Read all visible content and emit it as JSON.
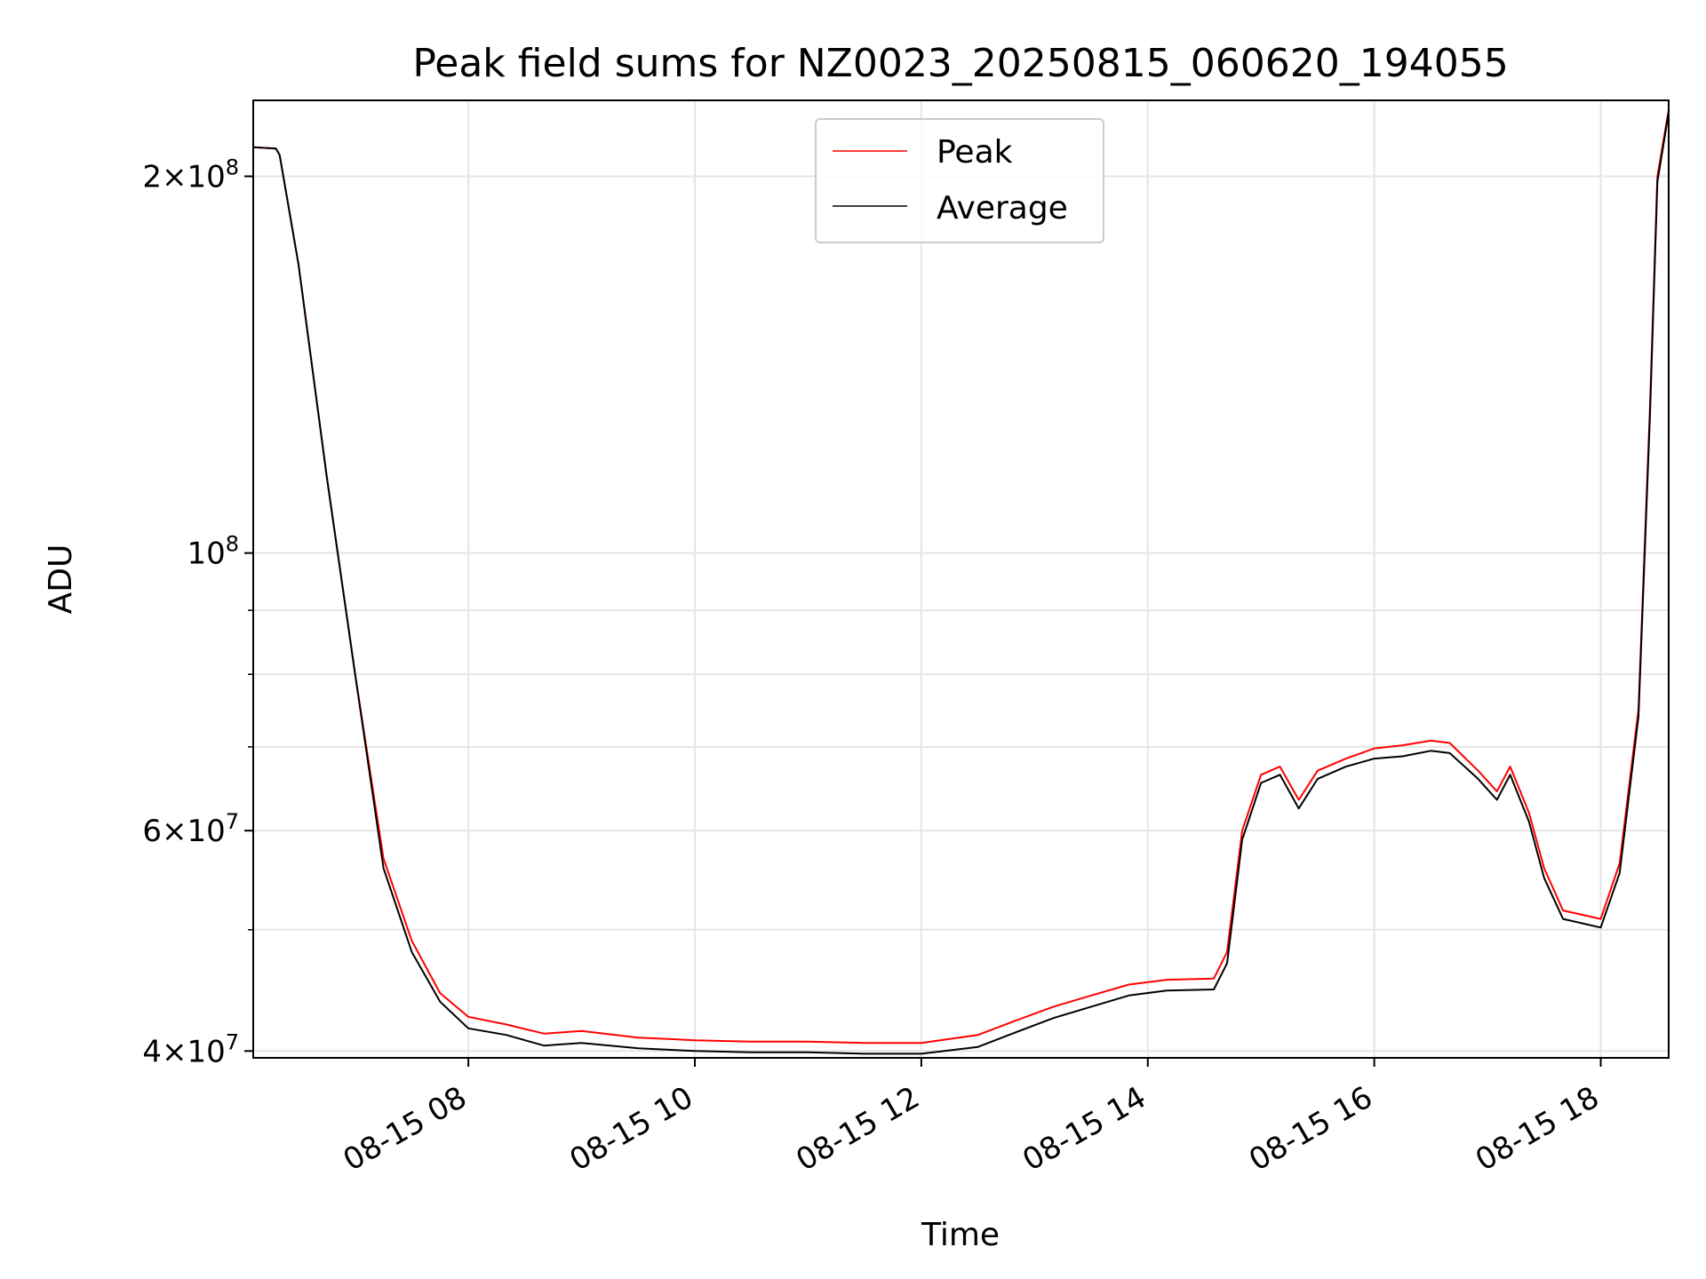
{
  "chart_data": {
    "type": "line",
    "title": "Peak field sums for NZ0023_20250815_060620_194055",
    "xlabel": "Time",
    "ylabel": "ADU",
    "yscale": "log",
    "xlim": [
      "2025-08-15 06:06",
      "2025-08-15 18:36"
    ],
    "ylim": [
      39500000,
      230000000
    ],
    "grid": true,
    "legend_position": "upper center",
    "x_ticks": [
      {
        "value": "2025-08-15 08:00",
        "label": "08-15 08"
      },
      {
        "value": "2025-08-15 10:00",
        "label": "08-15 10"
      },
      {
        "value": "2025-08-15 12:00",
        "label": "08-15 12"
      },
      {
        "value": "2025-08-15 14:00",
        "label": "08-15 14"
      },
      {
        "value": "2025-08-15 16:00",
        "label": "08-15 16"
      },
      {
        "value": "2025-08-15 18:00",
        "label": "08-15 18"
      }
    ],
    "y_ticks": [
      {
        "value": 40000000,
        "mantissa": "4",
        "exp": "7"
      },
      {
        "value": 60000000,
        "mantissa": "6",
        "exp": "7"
      },
      {
        "value": 100000000,
        "mantissa": "",
        "exp": "8"
      },
      {
        "value": 200000000,
        "mantissa": "2",
        "exp": "8"
      }
    ],
    "y_minor_ticks": [
      50000000,
      70000000,
      80000000,
      90000000
    ],
    "series": [
      {
        "name": "Peak",
        "color": "#ff0000",
        "points": [
          [
            "2025-08-15 06:06",
            211000000
          ],
          [
            "2025-08-15 06:18",
            210500000
          ],
          [
            "2025-08-15 06:20",
            208000000
          ],
          [
            "2025-08-15 06:30",
            170000000
          ],
          [
            "2025-08-15 06:45",
            115000000
          ],
          [
            "2025-08-15 07:00",
            80000000
          ],
          [
            "2025-08-15 07:15",
            57000000
          ],
          [
            "2025-08-15 07:30",
            49000000
          ],
          [
            "2025-08-15 07:45",
            44500000
          ],
          [
            "2025-08-15 08:00",
            42600000
          ],
          [
            "2025-08-15 08:20",
            42000000
          ],
          [
            "2025-08-15 08:40",
            41300000
          ],
          [
            "2025-08-15 09:00",
            41500000
          ],
          [
            "2025-08-15 09:30",
            41000000
          ],
          [
            "2025-08-15 10:00",
            40800000
          ],
          [
            "2025-08-15 10:30",
            40700000
          ],
          [
            "2025-08-15 11:00",
            40700000
          ],
          [
            "2025-08-15 11:30",
            40600000
          ],
          [
            "2025-08-15 12:00",
            40600000
          ],
          [
            "2025-08-15 12:30",
            41200000
          ],
          [
            "2025-08-15 12:50",
            42300000
          ],
          [
            "2025-08-15 13:10",
            43400000
          ],
          [
            "2025-08-15 13:30",
            44300000
          ],
          [
            "2025-08-15 13:50",
            45200000
          ],
          [
            "2025-08-15 14:10",
            45600000
          ],
          [
            "2025-08-15 14:35",
            45700000
          ],
          [
            "2025-08-15 14:42",
            48000000
          ],
          [
            "2025-08-15 14:50",
            60000000
          ],
          [
            "2025-08-15 15:00",
            66500000
          ],
          [
            "2025-08-15 15:10",
            67500000
          ],
          [
            "2025-08-15 15:20",
            63500000
          ],
          [
            "2025-08-15 15:30",
            67000000
          ],
          [
            "2025-08-15 15:45",
            68500000
          ],
          [
            "2025-08-15 16:00",
            69800000
          ],
          [
            "2025-08-15 16:15",
            70200000
          ],
          [
            "2025-08-15 16:30",
            70800000
          ],
          [
            "2025-08-15 16:40",
            70500000
          ],
          [
            "2025-08-15 16:55",
            67000000
          ],
          [
            "2025-08-15 17:05",
            64500000
          ],
          [
            "2025-08-15 17:12",
            67500000
          ],
          [
            "2025-08-15 17:22",
            62000000
          ],
          [
            "2025-08-15 17:30",
            56000000
          ],
          [
            "2025-08-15 17:40",
            51800000
          ],
          [
            "2025-08-15 18:00",
            51000000
          ],
          [
            "2025-08-15 18:10",
            56500000
          ],
          [
            "2025-08-15 18:20",
            75000000
          ],
          [
            "2025-08-15 18:26",
            130000000
          ],
          [
            "2025-08-15 18:30",
            200000000
          ],
          [
            "2025-08-15 18:36",
            226000000
          ]
        ]
      },
      {
        "name": "Average",
        "color": "#000000",
        "points": [
          [
            "2025-08-15 06:06",
            211000000
          ],
          [
            "2025-08-15 06:18",
            210500000
          ],
          [
            "2025-08-15 06:20",
            208000000
          ],
          [
            "2025-08-15 06:30",
            170000000
          ],
          [
            "2025-08-15 06:45",
            115000000
          ],
          [
            "2025-08-15 07:00",
            80000000
          ],
          [
            "2025-08-15 07:15",
            56000000
          ],
          [
            "2025-08-15 07:30",
            48000000
          ],
          [
            "2025-08-15 07:45",
            43800000
          ],
          [
            "2025-08-15 08:00",
            41700000
          ],
          [
            "2025-08-15 08:20",
            41200000
          ],
          [
            "2025-08-15 08:40",
            40400000
          ],
          [
            "2025-08-15 09:00",
            40600000
          ],
          [
            "2025-08-15 09:30",
            40200000
          ],
          [
            "2025-08-15 10:00",
            40000000
          ],
          [
            "2025-08-15 10:30",
            39900000
          ],
          [
            "2025-08-15 11:00",
            39900000
          ],
          [
            "2025-08-15 11:30",
            39800000
          ],
          [
            "2025-08-15 12:00",
            39800000
          ],
          [
            "2025-08-15 12:30",
            40300000
          ],
          [
            "2025-08-15 12:50",
            41400000
          ],
          [
            "2025-08-15 13:10",
            42500000
          ],
          [
            "2025-08-15 13:30",
            43400000
          ],
          [
            "2025-08-15 13:50",
            44300000
          ],
          [
            "2025-08-15 14:10",
            44700000
          ],
          [
            "2025-08-15 14:35",
            44800000
          ],
          [
            "2025-08-15 14:42",
            47000000
          ],
          [
            "2025-08-15 14:50",
            59000000
          ],
          [
            "2025-08-15 15:00",
            65500000
          ],
          [
            "2025-08-15 15:10",
            66500000
          ],
          [
            "2025-08-15 15:20",
            62500000
          ],
          [
            "2025-08-15 15:30",
            66000000
          ],
          [
            "2025-08-15 15:45",
            67500000
          ],
          [
            "2025-08-15 16:00",
            68500000
          ],
          [
            "2025-08-15 16:15",
            68800000
          ],
          [
            "2025-08-15 16:30",
            69500000
          ],
          [
            "2025-08-15 16:40",
            69200000
          ],
          [
            "2025-08-15 16:55",
            66000000
          ],
          [
            "2025-08-15 17:05",
            63500000
          ],
          [
            "2025-08-15 17:12",
            66500000
          ],
          [
            "2025-08-15 17:22",
            61000000
          ],
          [
            "2025-08-15 17:30",
            55000000
          ],
          [
            "2025-08-15 17:40",
            51000000
          ],
          [
            "2025-08-15 18:00",
            50200000
          ],
          [
            "2025-08-15 18:10",
            55500000
          ],
          [
            "2025-08-15 18:20",
            74000000
          ],
          [
            "2025-08-15 18:26",
            128000000
          ],
          [
            "2025-08-15 18:30",
            198000000
          ],
          [
            "2025-08-15 18:36",
            225000000
          ]
        ]
      }
    ]
  }
}
